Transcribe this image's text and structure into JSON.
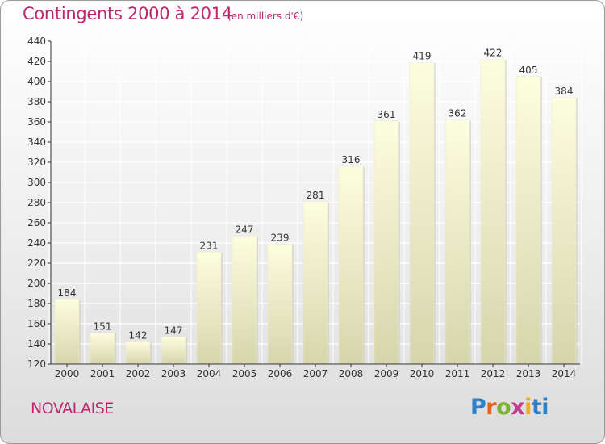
{
  "chart_data": {
    "type": "bar",
    "title": "Contingents 2000 à 2014",
    "subtitle": "(en milliers d'€)",
    "categories": [
      "2000",
      "2001",
      "2002",
      "2003",
      "2004",
      "2005",
      "2006",
      "2007",
      "2008",
      "2009",
      "2010",
      "2011",
      "2012",
      "2013",
      "2014"
    ],
    "values": [
      184,
      151,
      142,
      147,
      231,
      247,
      239,
      281,
      316,
      361,
      419,
      362,
      422,
      405,
      384
    ],
    "ylim": [
      120,
      440
    ],
    "yticks": [
      120,
      140,
      160,
      180,
      200,
      220,
      240,
      260,
      280,
      300,
      320,
      340,
      360,
      380,
      400,
      420,
      440
    ],
    "grid": true,
    "legend": "none"
  },
  "footer": {
    "commune": "NOVALAISE",
    "logo": "Proxiti"
  },
  "colors": {
    "title": "#c0266e",
    "bar_top": "#fdfde0",
    "bar_bottom": "#d6d6ac",
    "grid": "#ffffff",
    "logo_letters": [
      "#2f7fc6",
      "#e4611c",
      "#7ab329",
      "#c33a8f",
      "#f0a81c",
      "#2f7fc6"
    ]
  }
}
